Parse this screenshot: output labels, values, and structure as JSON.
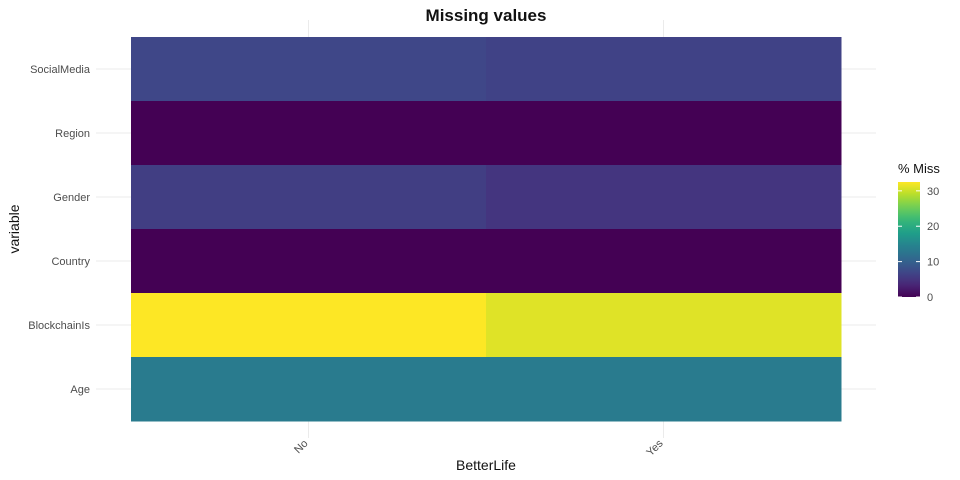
{
  "chart_data": {
    "type": "heatmap",
    "title": "Missing values",
    "xlabel": "BetterLife",
    "ylabel": "variable",
    "x_categories": [
      "No",
      "Yes"
    ],
    "y_categories": [
      "SocialMedia",
      "Region",
      "Gender",
      "Country",
      "BlockchainIs",
      "Age"
    ],
    "values": [
      [
        7.0,
        6.5
      ],
      [
        0.0,
        0.0
      ],
      [
        6.0,
        5.0
      ],
      [
        0.0,
        0.0
      ],
      [
        32.5,
        31.0
      ],
      [
        13.5,
        13.5
      ]
    ],
    "legend": {
      "title": "% Miss",
      "ticks": [
        0,
        10,
        20,
        30
      ],
      "range": [
        0,
        32.5
      ],
      "placement": "right",
      "colormap": "viridis"
    },
    "grid": true
  }
}
